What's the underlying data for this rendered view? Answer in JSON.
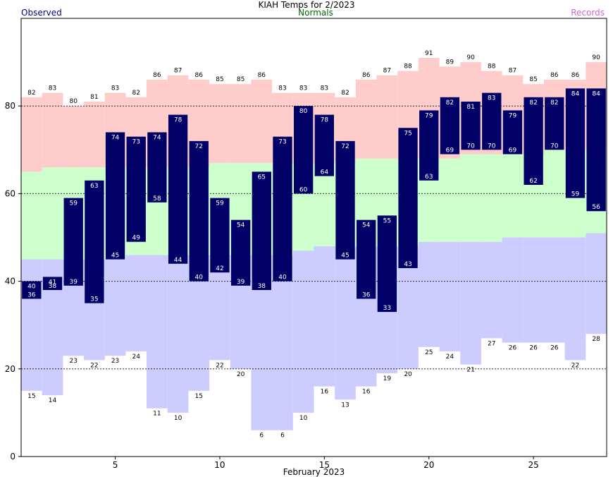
{
  "chart_data": {
    "type": "bar",
    "title": "KIAH Temps for 2/2023",
    "legend": [
      "Observed",
      "Normals",
      "Records"
    ],
    "legend_placement": "top",
    "xlabel": "February 2023",
    "ylabel": "",
    "x_ticks": [
      5,
      10,
      15,
      20,
      25
    ],
    "y_ticks": [
      0,
      20,
      40,
      60,
      80
    ],
    "xlim": [
      0.5,
      28.5
    ],
    "ylim": [
      0,
      100
    ],
    "grid": "dashed horizontal at 20, 40, 60, 80",
    "colors": {
      "observed": "#000066",
      "normals": "#ccffcc",
      "record_high_band": "#ffcccc",
      "record_low_band": "#ccccff",
      "observed_legend": "#000080",
      "normals_legend": "#006600",
      "records_legend": "#cc66cc"
    },
    "days": [
      1,
      2,
      3,
      4,
      5,
      6,
      7,
      8,
      9,
      10,
      11,
      12,
      13,
      14,
      15,
      16,
      17,
      18,
      19,
      20,
      21,
      22,
      23,
      24,
      25,
      26,
      27,
      28
    ],
    "observed_high": [
      40,
      41,
      59,
      63,
      74,
      73,
      74,
      78,
      72,
      59,
      54,
      65,
      73,
      80,
      78,
      72,
      54,
      55,
      75,
      79,
      82,
      81,
      83,
      79,
      82,
      82,
      84,
      84
    ],
    "observed_low": [
      36,
      38,
      39,
      35,
      45,
      49,
      58,
      44,
      40,
      42,
      39,
      38,
      40,
      60,
      64,
      45,
      36,
      33,
      43,
      63,
      69,
      70,
      70,
      69,
      62,
      70,
      59,
      56
    ],
    "normal_high": [
      65,
      66,
      66,
      66,
      66,
      66,
      66,
      66,
      66,
      67,
      67,
      67,
      67,
      67,
      67,
      67,
      68,
      68,
      68,
      68,
      68,
      69,
      69,
      69,
      69,
      70,
      70,
      70
    ],
    "normal_low": [
      45,
      45,
      45,
      45,
      45,
      46,
      46,
      46,
      46,
      46,
      46,
      46,
      46,
      47,
      48,
      48,
      48,
      48,
      48,
      49,
      49,
      49,
      49,
      50,
      50,
      50,
      50,
      51
    ],
    "record_high": [
      82,
      83,
      80,
      81,
      83,
      82,
      86,
      87,
      86,
      85,
      85,
      86,
      83,
      83,
      83,
      82,
      86,
      87,
      88,
      91,
      89,
      90,
      88,
      87,
      85,
      86,
      86,
      90
    ],
    "record_low": [
      15,
      14,
      23,
      22,
      23,
      24,
      11,
      10,
      15,
      22,
      20,
      6,
      6,
      10,
      16,
      13,
      16,
      19,
      20,
      25,
      24,
      21,
      27,
      26,
      26,
      26,
      22,
      28
    ]
  }
}
